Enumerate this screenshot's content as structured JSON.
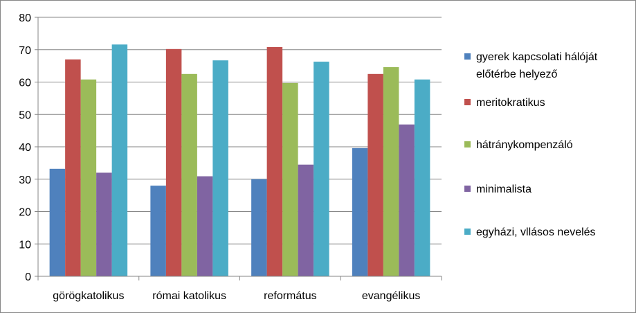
{
  "chart_data": {
    "type": "bar",
    "categories": [
      "görögkatolikus",
      "római katolikus",
      "református",
      "evangélikus"
    ],
    "series": [
      {
        "name": "gyerek kapcsolati hálóját előtérbe helyező",
        "name_lines": [
          "gyerek kapcsolati hálóját",
          "előtérbe helyező"
        ],
        "color": "#4F81BD",
        "values": [
          33.2,
          28,
          30,
          39.6
        ]
      },
      {
        "name": "meritokratikus",
        "name_lines": [
          "meritokratikus"
        ],
        "color": "#C0504D",
        "values": [
          67,
          70.2,
          70.8,
          62.5
        ]
      },
      {
        "name": "hátránykompenzáló",
        "name_lines": [
          "hátránykompenzáló"
        ],
        "color": "#9BBB59",
        "values": [
          60.8,
          62.5,
          59.7,
          64.6
        ]
      },
      {
        "name": "minimalista",
        "name_lines": [
          "minimalista"
        ],
        "color": "#8064A2",
        "values": [
          32,
          30.9,
          34.5,
          46.9
        ]
      },
      {
        "name": "egyházi, vllásos nevelés",
        "name_lines": [
          "egyházi, vllásos nevelés"
        ],
        "color": "#4BACC6",
        "values": [
          71.6,
          66.7,
          66.3,
          60.8
        ]
      }
    ],
    "y_ticks": [
      "0",
      "10",
      "20",
      "30",
      "40",
      "50",
      "60",
      "70",
      "80"
    ],
    "ylim": [
      0,
      80
    ],
    "grid": true,
    "legend_position": "right"
  }
}
